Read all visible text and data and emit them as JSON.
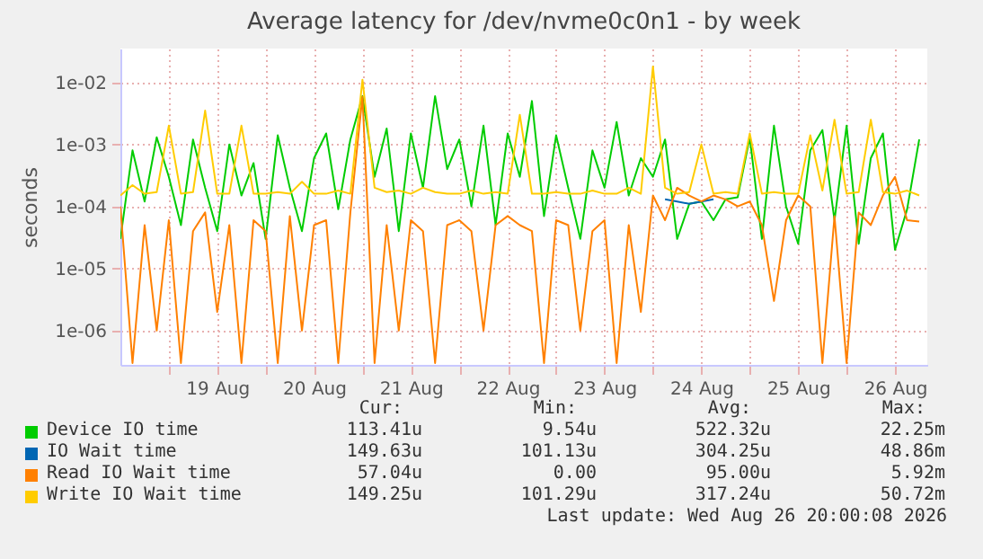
{
  "chart_data": {
    "type": "line",
    "title": "Average latency for /dev/nvme0c0n1 - by week",
    "ylabel": "seconds",
    "log": "y",
    "grid": true,
    "legend": "bottom",
    "xlim": [
      "2026-08-18T12:00",
      "2026-08-26T20:00"
    ],
    "xticks": [
      {
        "value": "2026-08-19T00:00",
        "label": null
      },
      {
        "value": "2026-08-19T12:00",
        "label": "19 Aug"
      },
      {
        "value": "2026-08-20T00:00",
        "label": null
      },
      {
        "value": "2026-08-20T12:00",
        "label": "20 Aug"
      },
      {
        "value": "2026-08-21T00:00",
        "label": null
      },
      {
        "value": "2026-08-21T12:00",
        "label": "21 Aug"
      },
      {
        "value": "2026-08-22T00:00",
        "label": null
      },
      {
        "value": "2026-08-22T12:00",
        "label": "22 Aug"
      },
      {
        "value": "2026-08-23T00:00",
        "label": null
      },
      {
        "value": "2026-08-23T12:00",
        "label": "23 Aug"
      },
      {
        "value": "2026-08-24T00:00",
        "label": null
      },
      {
        "value": "2026-08-24T12:00",
        "label": "24 Aug"
      },
      {
        "value": "2026-08-25T00:00",
        "label": null
      },
      {
        "value": "2026-08-25T12:00",
        "label": "25 Aug"
      },
      {
        "value": "2026-08-26T00:00",
        "label": null
      },
      {
        "value": "2026-08-26T12:00",
        "label": "26 Aug"
      }
    ],
    "ylim": [
      2.8e-07,
      0.035
    ],
    "yticks": [
      {
        "value": 1e-06,
        "label": "1e-06"
      },
      {
        "value": 1e-05,
        "label": "1e-05"
      },
      {
        "value": 0.0001,
        "label": "1e-04"
      },
      {
        "value": 0.001,
        "label": "1e-03"
      },
      {
        "value": 0.01,
        "label": "1e-02"
      }
    ],
    "x": [
      "2026-08-18T12:00",
      "2026-08-18T15:00",
      "2026-08-18T18:00",
      "2026-08-18T21:00",
      "2026-08-19T00:00",
      "2026-08-19T03:00",
      "2026-08-19T06:00",
      "2026-08-19T09:00",
      "2026-08-19T12:00",
      "2026-08-19T15:00",
      "2026-08-19T18:00",
      "2026-08-19T21:00",
      "2026-08-20T00:00",
      "2026-08-20T03:00",
      "2026-08-20T06:00",
      "2026-08-20T09:00",
      "2026-08-20T12:00",
      "2026-08-20T15:00",
      "2026-08-20T18:00",
      "2026-08-20T21:00",
      "2026-08-21T00:00",
      "2026-08-21T03:00",
      "2026-08-21T06:00",
      "2026-08-21T09:00",
      "2026-08-21T12:00",
      "2026-08-21T15:00",
      "2026-08-21T18:00",
      "2026-08-21T21:00",
      "2026-08-22T00:00",
      "2026-08-22T03:00",
      "2026-08-22T06:00",
      "2026-08-22T09:00",
      "2026-08-22T12:00",
      "2026-08-22T15:00",
      "2026-08-22T18:00",
      "2026-08-22T21:00",
      "2026-08-23T00:00",
      "2026-08-23T03:00",
      "2026-08-23T06:00",
      "2026-08-23T09:00",
      "2026-08-23T12:00",
      "2026-08-23T15:00",
      "2026-08-23T18:00",
      "2026-08-23T21:00",
      "2026-08-24T00:00",
      "2026-08-24T03:00",
      "2026-08-24T06:00",
      "2026-08-24T09:00",
      "2026-08-24T12:00",
      "2026-08-24T15:00",
      "2026-08-24T18:00",
      "2026-08-24T21:00",
      "2026-08-25T00:00",
      "2026-08-25T03:00",
      "2026-08-25T06:00",
      "2026-08-25T09:00",
      "2026-08-25T12:00",
      "2026-08-25T15:00",
      "2026-08-25T18:00",
      "2026-08-25T21:00",
      "2026-08-26T00:00",
      "2026-08-26T03:00",
      "2026-08-26T06:00",
      "2026-08-26T09:00",
      "2026-08-26T12:00",
      "2026-08-26T15:00",
      "2026-08-26T18:00"
    ],
    "series": [
      {
        "name": "Device IO time",
        "color": "#00cc00",
        "values": [
          3e-05,
          0.0008,
          0.00012,
          0.0013,
          0.0003,
          5e-05,
          0.0012,
          0.0002,
          4e-05,
          0.001,
          0.00015,
          0.0005,
          3e-05,
          0.0014,
          0.0002,
          4e-05,
          0.0006,
          0.0015,
          9e-05,
          0.0012,
          0.006,
          0.0003,
          0.0018,
          4e-05,
          0.0015,
          0.0002,
          0.006,
          0.0004,
          0.0012,
          0.0001,
          0.002,
          5e-05,
          0.0015,
          0.0003,
          0.005,
          7e-05,
          0.0014,
          0.0002,
          3e-05,
          0.0008,
          0.0002,
          0.0023,
          0.00015,
          0.0006,
          0.0003,
          0.0012,
          3e-05,
          0.00011,
          0.00012,
          6e-05,
          0.00013,
          0.00014,
          0.0013,
          3e-05,
          0.002,
          0.0001,
          2.5e-05,
          0.0008,
          0.0017,
          6e-05,
          0.002,
          2.5e-05,
          0.0006,
          0.0015,
          2e-05,
          9e-05,
          0.0012
        ]
      },
      {
        "name": "IO Wait time",
        "color": "#0066b3",
        "values": [
          null,
          null,
          null,
          null,
          null,
          null,
          null,
          null,
          null,
          null,
          null,
          null,
          null,
          null,
          null,
          null,
          null,
          null,
          null,
          null,
          null,
          null,
          null,
          null,
          null,
          null,
          null,
          null,
          null,
          null,
          null,
          null,
          null,
          null,
          null,
          null,
          null,
          null,
          null,
          null,
          null,
          null,
          null,
          null,
          null,
          0.00013,
          0.00012,
          0.00011,
          0.00012,
          0.00013,
          null,
          null,
          null,
          null,
          null,
          null,
          null,
          null,
          null,
          null,
          null,
          null,
          null,
          null,
          null,
          null,
          null
        ]
      },
      {
        "name": "Read IO Wait time",
        "color": "#ff8000",
        "values": [
          0.0001,
          3e-07,
          5e-05,
          1e-06,
          6e-05,
          3e-07,
          4e-05,
          8e-05,
          2e-06,
          5e-05,
          3e-07,
          6e-05,
          4e-05,
          3e-07,
          7e-05,
          1e-06,
          5e-05,
          6e-05,
          3e-07,
          8e-05,
          0.0059,
          3e-07,
          5e-05,
          1e-06,
          6e-05,
          4e-05,
          3e-07,
          5e-05,
          6e-05,
          4e-05,
          1e-06,
          5e-05,
          7e-05,
          5e-05,
          4e-05,
          3e-07,
          6e-05,
          5e-05,
          1e-06,
          4e-05,
          6e-05,
          3e-07,
          5e-05,
          2e-06,
          0.00015,
          6e-05,
          0.0002,
          0.00015,
          0.00012,
          0.00015,
          0.00013,
          0.0001,
          0.00012,
          5e-05,
          3e-06,
          6e-05,
          0.00015,
          0.0001,
          3e-07,
          7e-05,
          3e-07,
          8e-05,
          5e-05,
          0.00015,
          0.0003,
          6e-05,
          5.7e-05
        ]
      },
      {
        "name": "Write IO Wait time",
        "color": "#ffcc00",
        "values": [
          0.00015,
          0.00022,
          0.00016,
          0.00017,
          0.002,
          0.00016,
          0.00017,
          0.0035,
          0.00016,
          0.00016,
          0.002,
          0.00016,
          0.00016,
          0.00017,
          0.00016,
          0.00025,
          0.00016,
          0.00016,
          0.00018,
          0.00016,
          0.011,
          0.0002,
          0.00017,
          0.00018,
          0.00016,
          0.0002,
          0.00017,
          0.00016,
          0.00016,
          0.00018,
          0.00016,
          0.00017,
          0.00016,
          0.003,
          0.00016,
          0.00016,
          0.00017,
          0.00016,
          0.00016,
          0.00018,
          0.00016,
          0.00016,
          0.0002,
          0.00016,
          0.018,
          0.0002,
          0.00016,
          0.00017,
          0.001,
          0.00016,
          0.00017,
          0.00016,
          0.0015,
          0.00016,
          0.00017,
          0.00016,
          0.00016,
          0.0014,
          0.00018,
          0.0025,
          0.00016,
          0.00017,
          0.0025,
          0.00017,
          0.00016,
          0.00018,
          0.00015
        ]
      }
    ],
    "annotations": [
      "Cur:",
      "Min:",
      "Avg:",
      "Max:",
      "113.41u",
      "9.54u",
      "522.32u",
      "22.25m",
      "149.63u",
      "101.13u",
      "304.25u",
      "48.86m",
      "57.04u",
      "0.00",
      "95.00u",
      "5.92m",
      "149.25u",
      "101.29u",
      "317.24u",
      "50.72m",
      "Last update: Wed Aug 26 20:00:08 2026"
    ]
  }
}
